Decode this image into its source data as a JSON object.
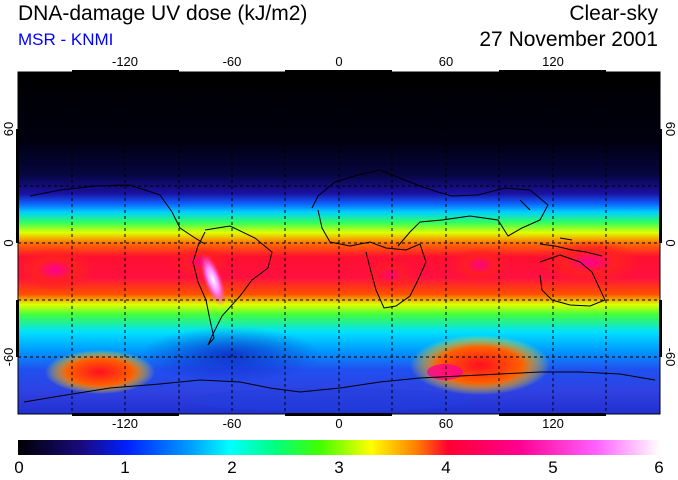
{
  "header": {
    "title": "DNA-damage UV dose (kJ/m2)",
    "subtitle": "MSR - KNMI",
    "condition": "Clear-sky",
    "date": "27 November 2001"
  },
  "map": {
    "lon_ticks": [
      "-120",
      "-60",
      "0",
      "60",
      "120"
    ],
    "lat_ticks_left": [
      "60",
      "0",
      "-60"
    ],
    "lat_ticks_right": [
      "60",
      "0",
      "-60"
    ],
    "lon_range": [
      -180,
      180
    ],
    "lat_range": [
      -90,
      90
    ],
    "gridlines": "dashed every 30 degrees"
  },
  "colorbar": {
    "labels": [
      "0",
      "1",
      "2",
      "3",
      "4",
      "5",
      "6"
    ],
    "range": [
      0,
      6
    ],
    "colors": [
      "#000000",
      "#1a0a80",
      "#0020ff",
      "#00a0ff",
      "#00ffff",
      "#00ff80",
      "#40ff00",
      "#ffff00",
      "#ff8000",
      "#ff0030",
      "#ff0090",
      "#ff60ff",
      "#ffffff"
    ]
  }
}
